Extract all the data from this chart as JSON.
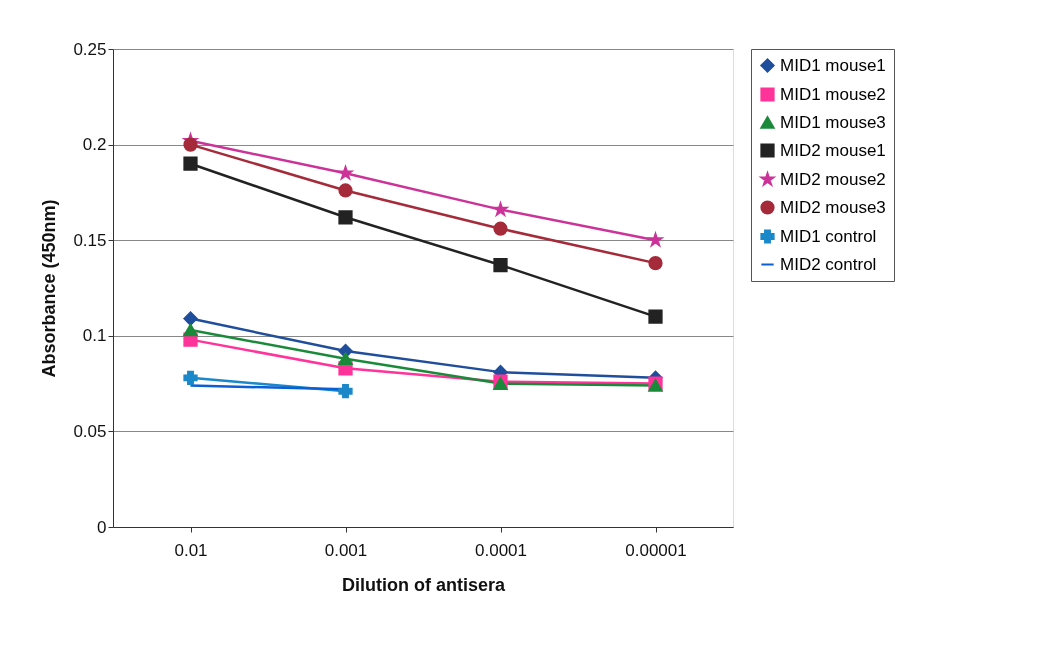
{
  "chart_data": {
    "type": "line",
    "xlabel": "Dilution of antisera",
    "ylabel": "Absorbance (450nm)",
    "categories": [
      "0.01",
      "0.001",
      "0.0001",
      "0.00001"
    ],
    "series": [
      {
        "name": "MID1 mouse1",
        "color": "#1f4e9c",
        "marker": "diamond",
        "values": [
          0.109,
          0.092,
          0.081,
          0.078
        ]
      },
      {
        "name": "MID1 mouse2",
        "color": "#ff3399",
        "marker": "square",
        "values": [
          0.098,
          0.083,
          0.076,
          0.075
        ]
      },
      {
        "name": "MID1 mouse3",
        "color": "#1a8a3a",
        "marker": "triangle",
        "values": [
          0.103,
          0.088,
          0.075,
          0.074
        ]
      },
      {
        "name": "MID2 mouse1",
        "color": "#222222",
        "marker": "square",
        "values": [
          0.19,
          0.162,
          0.137,
          0.11
        ]
      },
      {
        "name": "MID2 mouse2",
        "color": "#cc3399",
        "marker": "star",
        "values": [
          0.202,
          0.185,
          0.166,
          0.15
        ]
      },
      {
        "name": "MID2 mouse3",
        "color": "#a52a3a",
        "marker": "circle",
        "values": [
          0.2,
          0.176,
          0.156,
          0.138
        ]
      },
      {
        "name": "MID1 control",
        "color": "#1a88c9",
        "marker": "cross",
        "values": [
          0.078,
          0.071,
          null,
          null
        ]
      },
      {
        "name": "MID2 control",
        "color": "#0b5ed7",
        "marker": "none",
        "values": [
          0.074,
          0.072,
          null,
          null
        ]
      }
    ],
    "ylim": [
      0,
      0.25
    ],
    "yticks": [
      0,
      0.05,
      0.1,
      0.15,
      0.2,
      0.25
    ],
    "grid": "y",
    "legend": "right"
  }
}
